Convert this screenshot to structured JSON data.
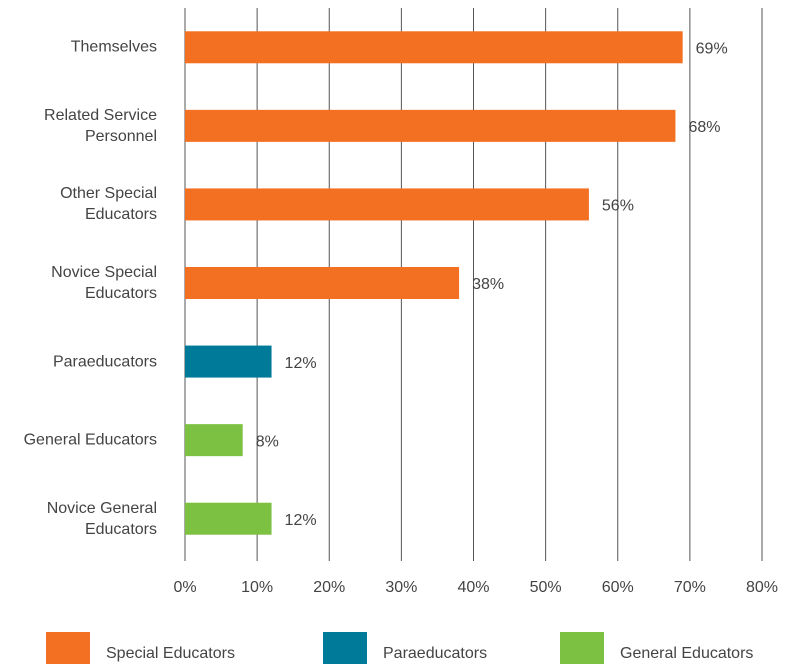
{
  "chart_data": {
    "type": "bar",
    "orientation": "horizontal",
    "categories": [
      "Themselves",
      "Related Service\nPersonnel",
      "Other Special\nEducators",
      "Novice Special\nEducators",
      "Paraeducators",
      "General Educators",
      "Novice General\nEducators"
    ],
    "series": [
      {
        "name": "Special Educators",
        "color": "#f36f21",
        "values": [
          69,
          68,
          56,
          38,
          null,
          null,
          null
        ],
        "value_labels": [
          "69%",
          "68%",
          "56%",
          "38%",
          null,
          null,
          null
        ]
      },
      {
        "name": "Paraeducators",
        "color": "#007a99",
        "values": [
          null,
          null,
          null,
          null,
          12,
          null,
          null
        ],
        "value_labels": [
          null,
          null,
          null,
          null,
          "12%",
          null,
          null
        ]
      },
      {
        "name": "General Educators",
        "color": "#7dc142",
        "values": [
          null,
          null,
          null,
          null,
          null,
          8,
          12
        ],
        "value_labels": [
          null,
          null,
          null,
          null,
          null,
          "8%",
          "12%"
        ]
      }
    ],
    "xlim": [
      0,
      80
    ],
    "xticks": [
      {
        "value": 0,
        "label": "0%"
      },
      {
        "value": 10,
        "label": "10%"
      },
      {
        "value": 20,
        "label": "20%"
      },
      {
        "value": 30,
        "label": "30%"
      },
      {
        "value": 40,
        "label": "40%"
      },
      {
        "value": 50,
        "label": "50%"
      },
      {
        "value": 60,
        "label": "60%"
      },
      {
        "value": 70,
        "label": "70%"
      },
      {
        "value": 80,
        "label": "80%"
      }
    ],
    "grid": true,
    "legend": "bottom"
  }
}
